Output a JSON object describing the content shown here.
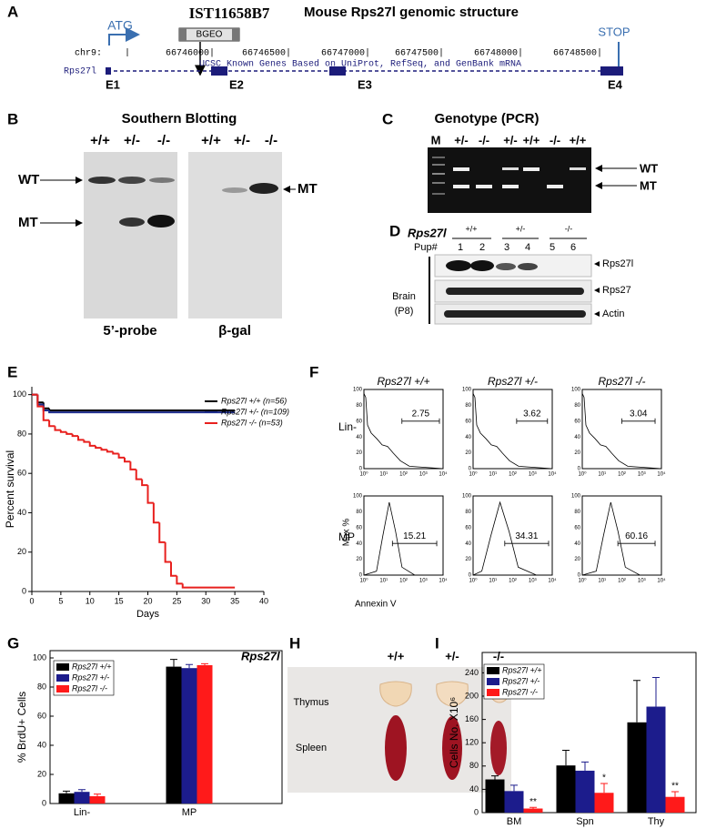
{
  "panel_labels": [
    "A",
    "B",
    "C",
    "D",
    "E",
    "F",
    "G",
    "H",
    "I"
  ],
  "genomic": {
    "title": "Mouse Rps27l genomic structure",
    "clone": "IST11658B7",
    "cassette": "BGEO",
    "start": "ATG",
    "stop": "STOP",
    "chromosome": "chr9:",
    "coordinates": [
      "66746000|",
      "66746500|",
      "66747000|",
      "66747500|",
      "66748000|",
      "66748500|"
    ],
    "track": "UCSC Known Genes Based on UniProt, RefSeq, and GenBank mRNA",
    "gene": "Rps27l",
    "exons": [
      "E1",
      "E2",
      "E3",
      "E4"
    ]
  },
  "southern": {
    "title": "Southern Blotting",
    "genotypes": [
      "+/+",
      "+/-",
      "-/-"
    ],
    "wt": "WT",
    "mt": "MT",
    "probes": [
      "5’-probe",
      "β-gal"
    ]
  },
  "pcr": {
    "title": "Genotype (PCR)",
    "lanes": [
      "M",
      "+/-",
      "-/-",
      "+/-",
      "+/+",
      "-/-",
      "+/+"
    ],
    "wt": "WT",
    "mt": "MT"
  },
  "western": {
    "gene": "Rps27l",
    "genotypes": [
      "+/+",
      "+/-",
      "-/-"
    ],
    "pup_label": "Pup#",
    "pups": [
      1,
      2,
      3,
      4,
      5,
      6
    ],
    "tissue": "Brain",
    "age": "(P8)",
    "bands": [
      "Rps27l",
      "Rps27",
      "Actin"
    ]
  },
  "flow": {
    "genotypes": [
      "Rps27l +/+",
      "Rps27l +/-",
      "Rps27l -/-"
    ],
    "populations": [
      "Lin-",
      "MP"
    ],
    "y_label": "Max %",
    "x_label": "Annexin V",
    "xticks": [
      "10⁰",
      "10¹",
      "10²",
      "10³",
      "10⁴"
    ],
    "yticks": [
      0,
      20,
      40,
      60,
      80,
      100
    ],
    "gates": [
      [
        2.75,
        3.62,
        3.04
      ],
      [
        15.21,
        34.31,
        60.16
      ]
    ]
  },
  "organs": {
    "gene": "Rps27l",
    "genotypes": [
      "+/+",
      "+/-",
      "-/-"
    ],
    "tissues": [
      "Thymus",
      "Spleen"
    ]
  },
  "chart_data": [
    {
      "type": "line",
      "drawstyle": "steps-post",
      "x_label": "Days",
      "y_label": "Percent survival",
      "xlim": [
        0,
        40
      ],
      "ylim": [
        0,
        104
      ],
      "xticks": [
        0,
        5,
        10,
        15,
        20,
        25,
        30,
        35,
        40
      ],
      "yticks": [
        0,
        20,
        40,
        60,
        80,
        100
      ],
      "legend": "upper right",
      "series": [
        {
          "name": "Rps27l +/+ (n=56)",
          "color": "#000000",
          "x": [
            0,
            1,
            2,
            3,
            35
          ],
          "values": [
            100,
            96,
            93,
            92,
            92
          ]
        },
        {
          "name": "Rps27l +/- (n=109)",
          "color": "#1c2c8c",
          "x": [
            0,
            1,
            2,
            3,
            35
          ],
          "values": [
            100,
            95,
            92,
            91,
            91
          ]
        },
        {
          "name": "Rps27l -/- (n=53)",
          "color": "#e8201e",
          "x": [
            0,
            1,
            2,
            3,
            4,
            5,
            6,
            7,
            8,
            9,
            10,
            11,
            12,
            13,
            14,
            15,
            16,
            17,
            18,
            19,
            20,
            21,
            22,
            23,
            24,
            25,
            26,
            35
          ],
          "values": [
            100,
            94,
            87,
            84,
            82,
            81,
            80,
            79,
            77,
            76,
            74,
            73,
            72,
            71,
            70,
            68,
            66,
            62,
            57,
            54,
            45,
            35,
            25,
            15,
            8,
            4,
            2,
            2
          ]
        }
      ]
    },
    {
      "type": "bar",
      "y_label": "% BrdU+ Cells",
      "categories": [
        "Lin-",
        "MP"
      ],
      "ylim": [
        0,
        105
      ],
      "yticks": [
        0,
        20,
        40,
        60,
        80,
        100
      ],
      "legend": "upper left",
      "series": [
        {
          "name": "Rps27l +/+",
          "color": "#000000",
          "values": [
            7,
            94
          ],
          "errors": [
            1.5,
            5
          ]
        },
        {
          "name": "Rps27l +/-",
          "color": "#1c1c8c",
          "values": [
            8,
            93
          ],
          "errors": [
            1.5,
            2.5
          ]
        },
        {
          "name": "Rps27l -/-",
          "color": "#ff1a1a",
          "values": [
            5,
            95
          ],
          "errors": [
            1.5,
            1
          ]
        }
      ]
    },
    {
      "type": "bar",
      "y_label": "Cells No. X10⁶",
      "categories": [
        "BM",
        "Spn",
        "Thy"
      ],
      "ylim": [
        0,
        275
      ],
      "yticks": [
        0,
        40,
        80,
        120,
        160,
        200,
        240
      ],
      "legend": "upper left",
      "series": [
        {
          "name": "Rps27l +/+",
          "color": "#000000",
          "values": [
            57,
            81,
            155
          ],
          "errors": [
            6,
            26,
            72
          ]
        },
        {
          "name": "Rps27l +/-",
          "color": "#1c1c8c",
          "values": [
            37,
            72,
            182
          ],
          "errors": [
            10,
            15,
            50
          ]
        },
        {
          "name": "Rps27l -/-",
          "color": "#ff1a1a",
          "values": [
            7,
            34,
            27
          ],
          "errors": [
            2,
            16,
            9
          ],
          "significance": [
            "**",
            "*",
            "**"
          ]
        }
      ]
    }
  ]
}
